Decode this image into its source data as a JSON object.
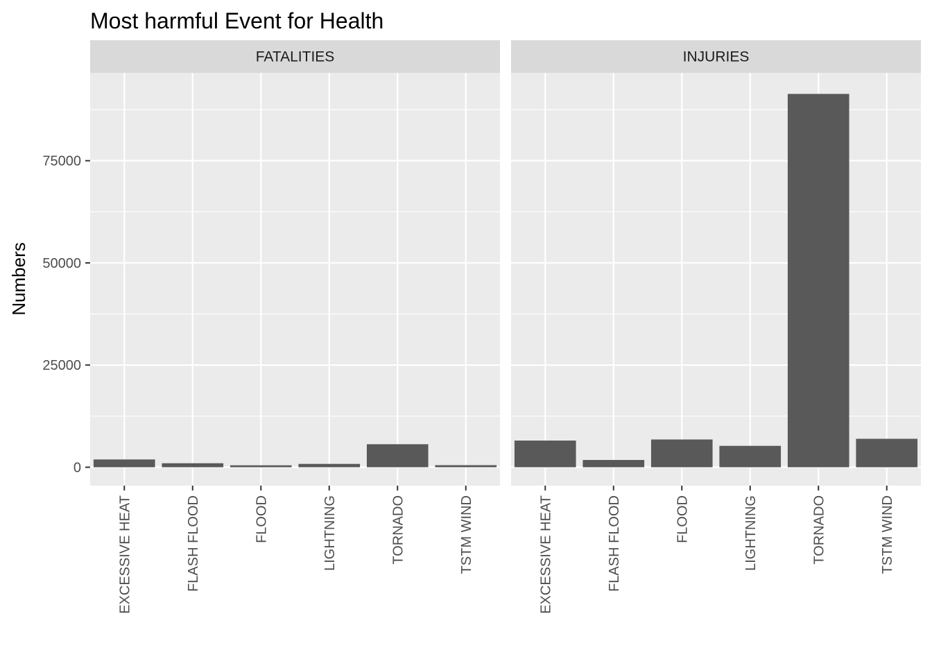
{
  "chart_data": {
    "type": "bar",
    "title": "Most harmful Event for Health",
    "xlabel": "",
    "ylabel": "Numbers",
    "ylim": [
      -4500,
      96500
    ],
    "y_ticks": [
      0,
      25000,
      50000,
      75000
    ],
    "y_tick_labels": [
      "0",
      "25000",
      "50000",
      "75000"
    ],
    "categories": [
      "EXCESSIVE HEAT",
      "FLASH FLOOD",
      "FLOOD",
      "LIGHTNING",
      "TORNADO",
      "TSTM WIND"
    ],
    "panels": [
      {
        "name": "FATALITIES",
        "values": [
          1903,
          978,
          470,
          816,
          5633,
          504
        ]
      },
      {
        "name": "INJURIES",
        "values": [
          6525,
          1777,
          6789,
          5230,
          91346,
          6957
        ]
      }
    ],
    "grid": true,
    "legend": "none",
    "bar_color": "#595959",
    "panel_background": "#ebebeb",
    "strip_background": "#d9d9d9",
    "grid_color": "#ffffff"
  }
}
